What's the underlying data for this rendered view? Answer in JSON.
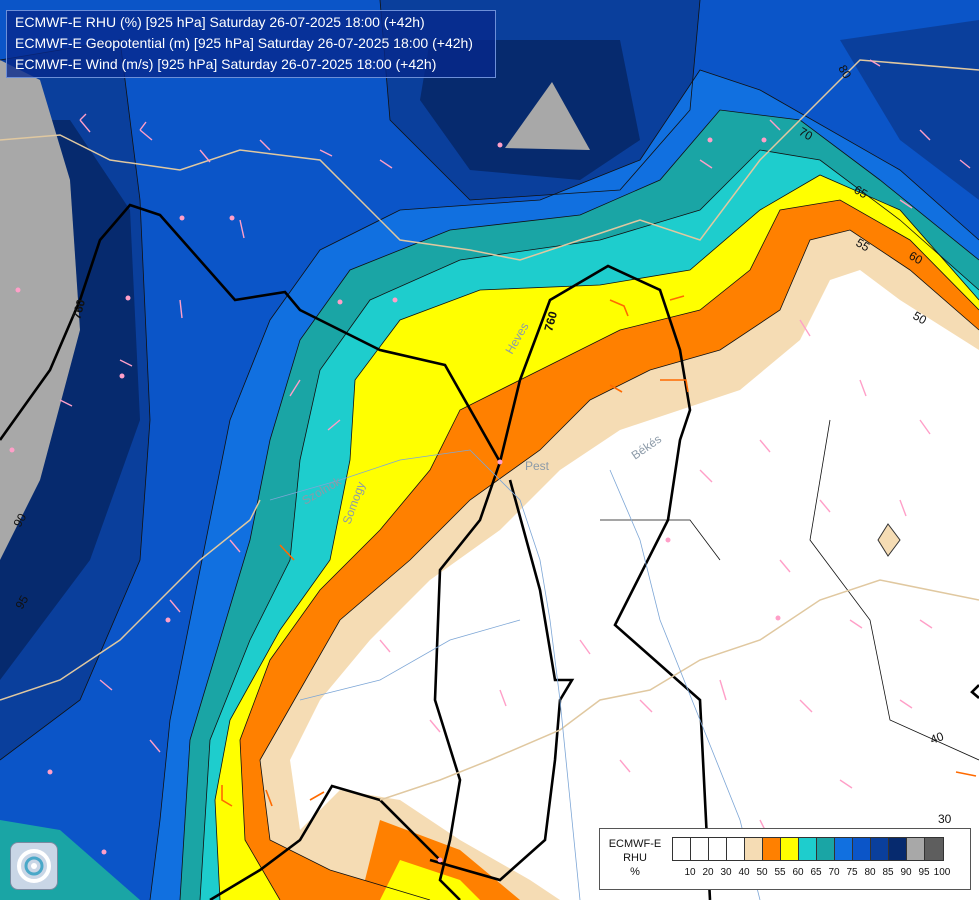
{
  "title": {
    "line1": "ECMWF-E RHU (%) [925 hPa] Saturday 26-07-2025 18:00 (+42h)",
    "line2": "ECMWF-E Geopotential (m) [925 hPa] Saturday 26-07-2025 18:00 (+42h)",
    "line3": "ECMWF-E Wind (m/s) [925 hPa] Saturday 26-07-2025 18:00 (+42h)"
  },
  "legend": {
    "label_lines": [
      "ECMWF-E",
      "RHU",
      "%"
    ],
    "ticks": [
      "10",
      "20",
      "30",
      "40",
      "50",
      "55",
      "60",
      "65",
      "70",
      "75",
      "80",
      "85",
      "90",
      "95",
      "100"
    ],
    "colors": [
      "#ffffff",
      "#ffffff",
      "#ffffff",
      "#ffffff",
      "#f5dcb4",
      "#ff8000",
      "#ffff00",
      "#1ecdcd",
      "#1aa5a5",
      "#1170e0",
      "#0b55c8",
      "#0a3f9c",
      "#062a6e",
      "#a8a8a8",
      "#5e5e5e"
    ]
  },
  "contour_labels": {
    "rhu": [
      "80",
      "70",
      "65",
      "55",
      "60",
      "50",
      "40",
      "30",
      "90",
      "95"
    ],
    "geopotential": [
      "760",
      "760"
    ]
  },
  "places": [
    "Heves",
    "Pest",
    "Békés",
    "Szolnok",
    "Somogy"
  ],
  "logo": "ecmwf-logo-icon"
}
